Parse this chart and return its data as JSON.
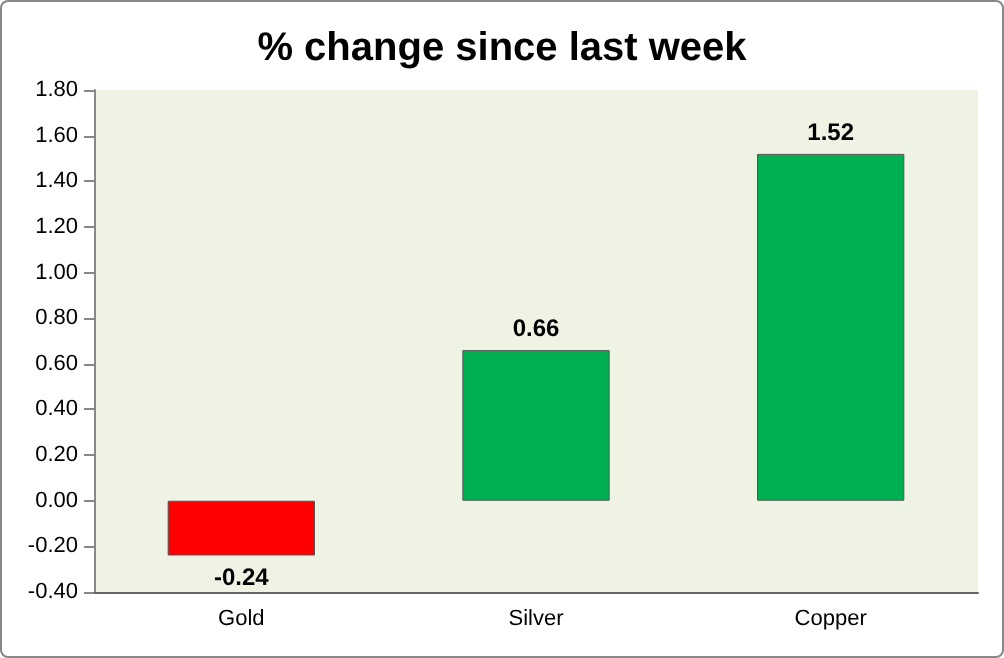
{
  "chart_data": {
    "type": "bar",
    "title": "% change since last week",
    "categories": [
      "Gold",
      "Silver",
      "Copper"
    ],
    "values": [
      -0.24,
      0.66,
      1.52
    ],
    "colors": [
      "#ff0000",
      "#00b050",
      "#00b050"
    ],
    "data_labels": true,
    "ylim": [
      -0.4,
      1.8
    ],
    "yticks": [
      {
        "value": -0.4,
        "label": "-0.40"
      },
      {
        "value": -0.2,
        "label": "-0.20"
      },
      {
        "value": 0,
        "label": "0.00"
      },
      {
        "value": 0.2,
        "label": "0.20"
      },
      {
        "value": 0.4,
        "label": "0.40"
      },
      {
        "value": 0.6,
        "label": "0.60"
      },
      {
        "value": 0.8,
        "label": "0.80"
      },
      {
        "value": 1.0,
        "label": "1.00"
      },
      {
        "value": 1.2,
        "label": "1.20"
      },
      {
        "value": 1.4,
        "label": "1.40"
      },
      {
        "value": 1.6,
        "label": "1.60"
      },
      {
        "value": 1.8,
        "label": "1.80"
      }
    ],
    "grid": false
  }
}
